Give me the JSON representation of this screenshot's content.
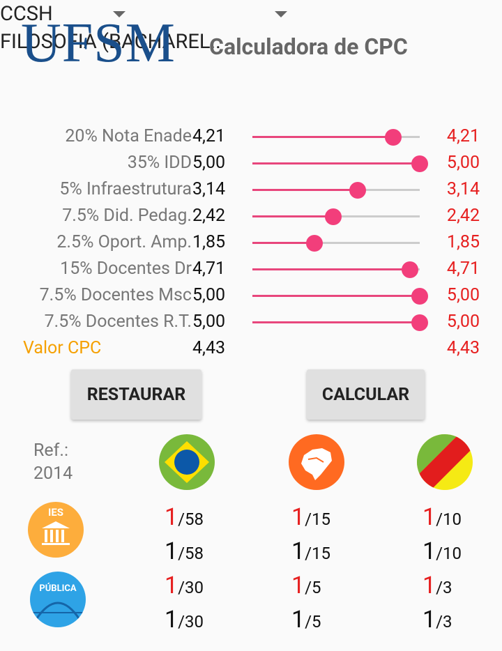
{
  "header": {
    "logo": "UFSM",
    "title": "Calculadora de CPC"
  },
  "selectors": {
    "center": "CCSH",
    "course": "FILOSOFIA (BACHAREL.."
  },
  "metrics": [
    {
      "label": "20% Nota Enade",
      "value": "4,21",
      "result": "4,21",
      "slider": 0.84
    },
    {
      "label": "35% IDD",
      "value": "5,00",
      "result": "5,00",
      "slider": 1.0
    },
    {
      "label": "5% Infraestrutura",
      "value": "3,14",
      "result": "3,14",
      "slider": 0.628
    },
    {
      "label": "7.5% Did. Pedag.",
      "value": "2,42",
      "result": "2,42",
      "slider": 0.484
    },
    {
      "label": "2.5% Oport. Amp.",
      "value": "1,85",
      "result": "1,85",
      "slider": 0.37
    },
    {
      "label": "15% Docentes Dr",
      "value": "4,71",
      "result": "4,71",
      "slider": 0.942
    },
    {
      "label": "7.5% Docentes Msc",
      "value": "5,00",
      "result": "5,00",
      "slider": 1.0
    },
    {
      "label": "7.5% Docentes R.T.",
      "value": "5,00",
      "result": "5,00",
      "slider": 1.0
    }
  ],
  "cpc": {
    "label": "Valor CPC",
    "value": "4,43",
    "result": "4,43"
  },
  "buttons": {
    "restore": "RESTAURAR",
    "calculate": "CALCULAR"
  },
  "ranking": {
    "ref_label": "Ref.:",
    "ref_year": "2014",
    "scopes": [
      "brazil-flag-icon",
      "rs-state-map-icon",
      "rs-flag-icon"
    ],
    "ies_icon_label": "IES",
    "publica_icon_label": "PÚBLICA",
    "ies": {
      "red": [
        {
          "pos": "1",
          "total": "/58"
        },
        {
          "pos": "1",
          "total": "/15"
        },
        {
          "pos": "1",
          "total": "/10"
        }
      ],
      "black": [
        {
          "pos": "1",
          "total": "/58"
        },
        {
          "pos": "1",
          "total": "/15"
        },
        {
          "pos": "1",
          "total": "/10"
        }
      ]
    },
    "publica": {
      "red": [
        {
          "pos": "1",
          "total": "/30"
        },
        {
          "pos": "1",
          "total": "/5"
        },
        {
          "pos": "1",
          "total": "/3"
        }
      ],
      "black": [
        {
          "pos": "1",
          "total": "/30"
        },
        {
          "pos": "1",
          "total": "/5"
        },
        {
          "pos": "1",
          "total": "/3"
        }
      ]
    }
  },
  "colors": {
    "accent": "#f23e7b",
    "result": "#e62020",
    "cpc_label": "#f5a000",
    "logo": "#1a4f8b"
  }
}
